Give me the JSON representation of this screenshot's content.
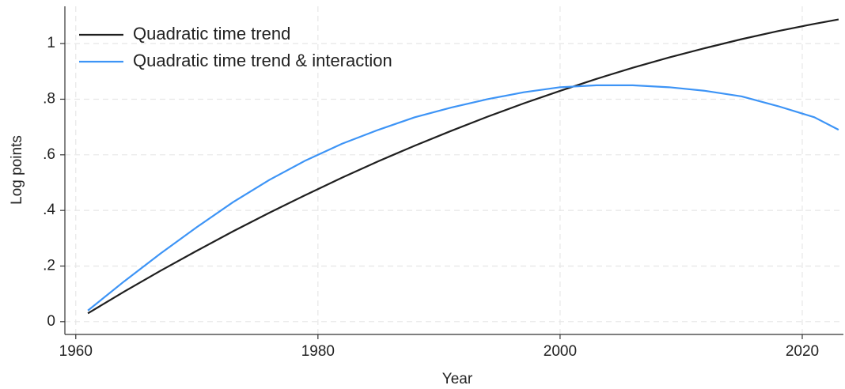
{
  "chart_data": {
    "type": "line",
    "x_label": "Year",
    "y_label": "Log points",
    "x": [
      1961,
      1964,
      1967,
      1970,
      1973,
      1976,
      1979,
      1982,
      1985,
      1988,
      1991,
      1994,
      1997,
      2000,
      2003,
      2006,
      2009,
      2012,
      2015,
      2018,
      2021,
      2023
    ],
    "series": [
      {
        "name": "Quadratic time trend",
        "color": "#1f1f1f",
        "values": [
          0.03,
          0.108,
          0.183,
          0.255,
          0.325,
          0.392,
          0.456,
          0.518,
          0.577,
          0.633,
          0.686,
          0.737,
          0.785,
          0.83,
          0.873,
          0.913,
          0.95,
          0.984,
          1.016,
          1.045,
          1.071,
          1.087
        ]
      },
      {
        "name": "Quadratic time trend & interaction",
        "color": "#3d94f6",
        "values": [
          0.04,
          0.145,
          0.245,
          0.34,
          0.43,
          0.51,
          0.58,
          0.64,
          0.69,
          0.735,
          0.77,
          0.8,
          0.825,
          0.843,
          0.85,
          0.85,
          0.843,
          0.83,
          0.81,
          0.775,
          0.735,
          0.69
        ]
      }
    ],
    "xlim": [
      1959.1,
      2023.4
    ],
    "xticks": [
      1960,
      1980,
      2000,
      2020
    ],
    "ylim": [
      -0.046,
      1.134
    ],
    "yticks": [
      0,
      {
        "value": 0.2,
        "label": ".2"
      },
      {
        "value": 0.4,
        "label": ".4"
      },
      {
        "value": 0.6,
        "label": ".6"
      },
      {
        "value": 0.8,
        "label": ".8"
      },
      1
    ],
    "grid": true,
    "legend": "top-left"
  }
}
